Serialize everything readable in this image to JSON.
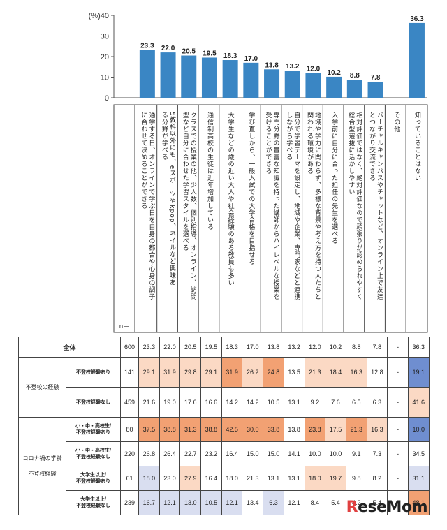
{
  "chart_data": {
    "type": "bar",
    "ylabel": "(%)",
    "ylim": [
      0,
      40
    ],
    "yticks": [
      0,
      10,
      20,
      30,
      40
    ],
    "color": "#3a86c4",
    "categories": [
      "通学する日、オンラインで学ぶ日を自身の都合や心身の調子に合わせて決めることができる",
      "5教科以外にも、eスポーツやkpop、ネイルなど興味ある分野が学べる",
      "クラスでの授業の他、少人数、個別指導、オンライン、訪問型など自分に合わせた学習スタイルを選べる",
      "通信制高校の生徒は近年増加している",
      "大学生などの歳の近い大人や社会経験のある教員も多い",
      "学び直しから、一般入試での大学合格を目指せる",
      "専門分野の豊富な知識を持った講師からハイレベルな授業を受けることができる",
      "自分で学習テーマを設定し、地域や企業、専門家などと連携しながら学べる",
      "地域や学力に関わらず、多様な背景や考え方を持つ人たちと関われる環境がある",
      "入学前に自分に合った担任の先生を選べる",
      "相対評価ではなく、絶対評価なので頑張りが認められやすく総合型選抜に活かしやすい",
      "バーチャルキャンパスやチャットなど、オンライン上で友達とつながり交流できる",
      "その他",
      "知っていることはない"
    ],
    "values": [
      23.3,
      22.0,
      20.5,
      19.5,
      18.3,
      17.0,
      13.8,
      13.2,
      12.0,
      10.2,
      8.8,
      7.8,
      null,
      36.3
    ],
    "value_labels": [
      "23.3",
      "22.0",
      "20.5",
      "19.5",
      "18.3",
      "17.0",
      "13.8",
      "13.2",
      "12.0",
      "10.2",
      "8.8",
      "7.8",
      "",
      "36.3"
    ],
    "n_label": "n＝",
    "table": {
      "rows": [
        {
          "group": "",
          "label": "全体",
          "n": "600",
          "values": [
            "23.3",
            "22.0",
            "20.5",
            "19.5",
            "18.3",
            "17.0",
            "13.8",
            "13.2",
            "12.0",
            "10.2",
            "8.8",
            "7.8",
            "-",
            "36.3"
          ],
          "shade": [
            "",
            "",
            "",
            "",
            "",
            "",
            "",
            "",
            "",
            "",
            "",
            "",
            "",
            ""
          ]
        },
        {
          "group": "不登校の経験",
          "label": "不登校経験あり",
          "n": "141",
          "values": [
            "29.1",
            "31.9",
            "29.8",
            "29.1",
            "31.9",
            "26.2",
            "24.8",
            "13.5",
            "21.3",
            "18.4",
            "16.3",
            "12.8",
            "-",
            "19.1"
          ],
          "shade": [
            "mid",
            "mid",
            "mid",
            "mid",
            "hi",
            "mid",
            "hi",
            "",
            "mid",
            "mid",
            "mid",
            "",
            "",
            "blue"
          ]
        },
        {
          "group": "",
          "label": "不登校経験なし",
          "n": "459",
          "values": [
            "21.6",
            "19.0",
            "17.6",
            "16.6",
            "14.2",
            "14.2",
            "10.5",
            "13.1",
            "9.2",
            "7.6",
            "6.5",
            "6.3",
            "-",
            "41.6"
          ],
          "shade": [
            "",
            "",
            "",
            "",
            "",
            "",
            "",
            "",
            "",
            "",
            "",
            "",
            "",
            "mid"
          ]
        },
        {
          "group": "コロナ禍の学齢_不登校経験",
          "label": "小・中・高校生/不登校経験あり",
          "n": "80",
          "values": [
            "37.5",
            "38.8",
            "31.3",
            "38.8",
            "42.5",
            "30.0",
            "33.8",
            "13.8",
            "23.8",
            "17.5",
            "21.3",
            "16.3",
            "-",
            "10.0"
          ],
          "shade": [
            "hi",
            "hi",
            "hi",
            "hi",
            "hi",
            "hi",
            "hi",
            "",
            "hi",
            "mid",
            "hi",
            "mid",
            "",
            "blue"
          ]
        },
        {
          "group": "",
          "label": "小・中・高校生/不登校経験なし",
          "n": "220",
          "values": [
            "26.8",
            "26.4",
            "22.7",
            "23.2",
            "16.4",
            "15.0",
            "15.0",
            "14.1",
            "10.0",
            "10.0",
            "9.1",
            "7.3",
            "-",
            "34.5"
          ],
          "shade": [
            "",
            "",
            "",
            "",
            "",
            "",
            "",
            "",
            "",
            "",
            "",
            "",
            "",
            ""
          ]
        },
        {
          "group": "",
          "label": "大学生以上/不登校経験あり",
          "n": "61",
          "values": [
            "18.0",
            "23.0",
            "27.9",
            "16.4",
            "18.0",
            "21.3",
            "13.1",
            "13.1",
            "18.0",
            "19.7",
            "9.8",
            "8.2",
            "-",
            "31.1"
          ],
          "shade": [
            "lo",
            "",
            "mid",
            "",
            "",
            "",
            "",
            "",
            "mid",
            "mid",
            "",
            "",
            "",
            "lo"
          ]
        },
        {
          "group": "",
          "label": "大学生以上/不登校経験なし",
          "n": "239",
          "values": [
            "16.7",
            "12.1",
            "13.0",
            "10.5",
            "12.1",
            "13.4",
            "6.3",
            "12.1",
            "8.4",
            "5.4",
            "4.2",
            "5.4",
            "-",
            "48.1"
          ],
          "shade": [
            "lo",
            "lo",
            "lo",
            "lo",
            "lo",
            "",
            "lo",
            "",
            "",
            "",
            "",
            "",
            "",
            "hi"
          ]
        }
      ]
    }
  },
  "logo_text": "ReseMom"
}
